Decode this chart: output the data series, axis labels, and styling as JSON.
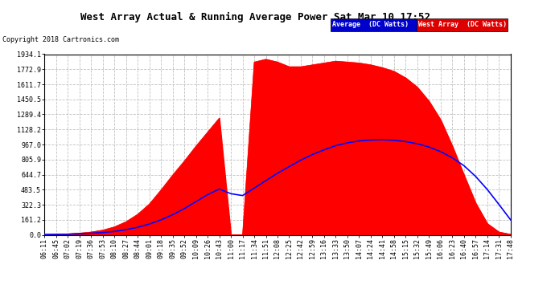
{
  "title": "West Array Actual & Running Average Power Sat Mar 10 17:52",
  "copyright": "Copyright 2018 Cartronics.com",
  "legend_labels": [
    "Average  (DC Watts)",
    "West Array  (DC Watts)"
  ],
  "ymax": 1934.1,
  "ymin": 0.0,
  "yticks": [
    0.0,
    161.2,
    322.3,
    483.5,
    644.7,
    805.9,
    967.0,
    1128.2,
    1289.4,
    1450.5,
    1611.7,
    1772.9,
    1934.1
  ],
  "background_color": "#ffffff",
  "grid_color": "#c0c0c0",
  "fill_color": "#ff0000",
  "avg_line_color": "#0000ff",
  "x_labels": [
    "06:11",
    "06:45",
    "07:02",
    "07:19",
    "07:36",
    "07:53",
    "08:10",
    "08:27",
    "08:44",
    "09:01",
    "09:18",
    "09:35",
    "09:52",
    "10:09",
    "10:26",
    "10:43",
    "11:00",
    "11:17",
    "11:34",
    "11:51",
    "12:08",
    "12:25",
    "12:42",
    "12:59",
    "13:16",
    "13:33",
    "13:50",
    "14:07",
    "14:24",
    "14:41",
    "14:58",
    "15:15",
    "15:32",
    "15:49",
    "16:06",
    "16:23",
    "16:40",
    "16:57",
    "17:14",
    "17:31",
    "17:48"
  ],
  "west_array_values": [
    3,
    6,
    10,
    18,
    30,
    50,
    85,
    140,
    220,
    330,
    480,
    640,
    790,
    950,
    1100,
    1250,
    0,
    0,
    1850,
    1880,
    1850,
    1800,
    1800,
    1820,
    1840,
    1860,
    1850,
    1840,
    1820,
    1790,
    1750,
    1680,
    1580,
    1430,
    1230,
    950,
    640,
    340,
    120,
    30,
    5
  ],
  "avg_values": [
    3,
    4,
    6,
    10,
    16,
    24,
    36,
    55,
    80,
    115,
    160,
    215,
    280,
    355,
    430,
    490,
    440,
    420,
    500,
    580,
    660,
    730,
    800,
    860,
    910,
    955,
    985,
    1005,
    1015,
    1018,
    1012,
    998,
    975,
    940,
    890,
    825,
    740,
    625,
    485,
    325,
    160
  ]
}
